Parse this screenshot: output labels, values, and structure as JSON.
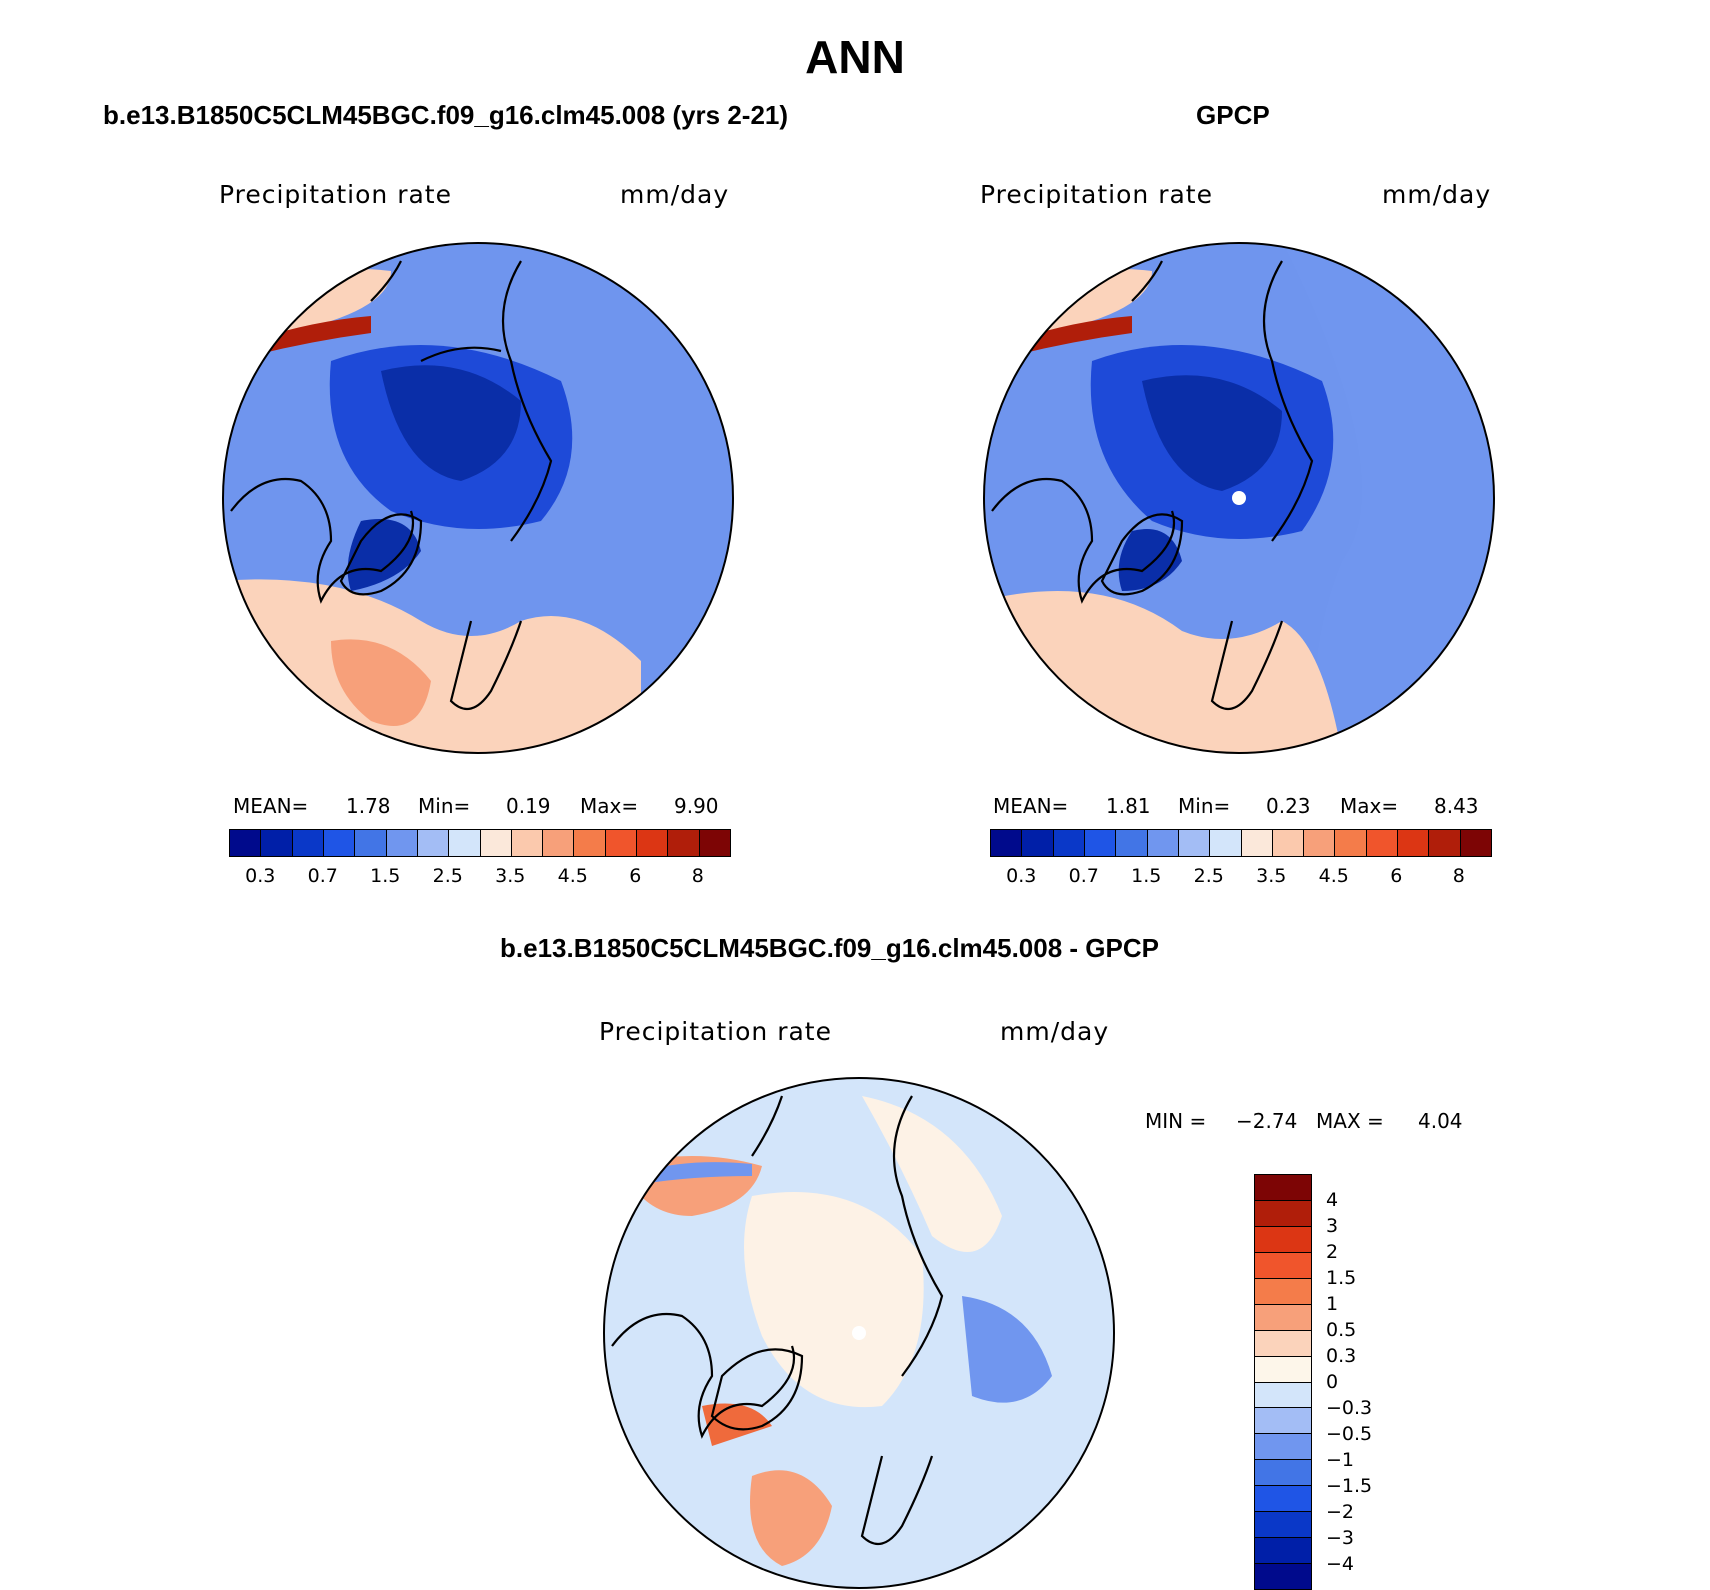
{
  "title": "ANN",
  "panels": [
    {
      "title": "b.e13.B1850C5CLM45BGC.f09_g16.clm45.008 (yrs 2-21)",
      "variable": "Precipitation rate",
      "units": "mm/day",
      "stats": {
        "mean_label": "MEAN=",
        "mean": "1.78",
        "min_label": "Min=",
        "min": "0.19",
        "max_label": "Max=",
        "max": "9.90"
      }
    },
    {
      "title": "GPCP",
      "variable": "Precipitation rate",
      "units": "mm/day",
      "stats": {
        "mean_label": "MEAN=",
        "mean": "1.81",
        "min_label": "Min=",
        "min": "0.23",
        "max_label": "Max=",
        "max": "8.43"
      }
    },
    {
      "title": "b.e13.B1850C5CLM45BGC.f09_g16.clm45.008 - GPCP",
      "variable": "Precipitation rate",
      "units": "mm/day",
      "stats": {
        "min_label": "MIN =",
        "min": "−2.74",
        "max_label": "MAX =",
        "max": "4.04"
      }
    }
  ],
  "colorbar_abs": {
    "colors": [
      "#000a8c",
      "#001fa8",
      "#0a38c8",
      "#1f55e6",
      "#4275e6",
      "#7096ef",
      "#a3bdf5",
      "#d3e5fa",
      "#fbe8da",
      "#fbc9ad",
      "#f7a07a",
      "#f47c4a",
      "#f0552c",
      "#dc3614",
      "#b01e0a",
      "#7d0505"
    ],
    "tick_labels": [
      "0.3",
      "0.7",
      "1.5",
      "2.5",
      "3.5",
      "4.5",
      "6",
      "8"
    ]
  },
  "colorbar_diff": {
    "colors": [
      "#000a8c",
      "#001fa8",
      "#0a38c8",
      "#1f55e6",
      "#4275e6",
      "#7096ef",
      "#a3bdf5",
      "#d3e5fa",
      "#fdf6ea",
      "#fbd3bb",
      "#f7a07a",
      "#f47c4a",
      "#f0552c",
      "#dc3614",
      "#b01e0a",
      "#7d0505"
    ],
    "tick_labels": [
      "4",
      "3",
      "2",
      "1.5",
      "1",
      "0.5",
      "0.3",
      "0",
      "−0.3",
      "−0.5",
      "−1",
      "−1.5",
      "−2",
      "−3",
      "−4"
    ]
  },
  "map_colors": {
    "base_abs": "#6f95ee",
    "deep_arctic": "#1e4ad8",
    "very_deep": "#0a2ea8",
    "warm_light": "#fbd3bb",
    "warm_mid": "#f7a07a",
    "warm_strong": "#ef6a3c",
    "warm_dark": "#b01e0a",
    "diff_base": "#d3e5fa",
    "diff_warm": "#fdf2e6",
    "diff_blue": "#7096ef"
  }
}
